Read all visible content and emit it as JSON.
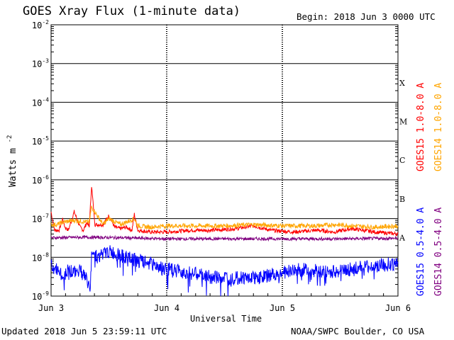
{
  "header": {
    "title": "GOES Xray Flux (1-minute data)",
    "begin": "Begin:  2018 Jun 3 0000 UTC"
  },
  "footer": {
    "updated": "Updated 2018 Jun  5 23:59:11 UTC",
    "credit": "NOAA/SWPC Boulder, CO USA"
  },
  "chart_data": {
    "type": "line",
    "title": "GOES Xray Flux (1-minute data)",
    "xlabel": "Universal Time",
    "ylabel": "Watts m",
    "ylabel_superscript": "-2",
    "y_scale": "log",
    "ylim": [
      1e-09,
      0.01
    ],
    "y_ticks": [
      {
        "base": "10",
        "exp": "-2"
      },
      {
        "base": "10",
        "exp": "-3"
      },
      {
        "base": "10",
        "exp": "-4"
      },
      {
        "base": "10",
        "exp": "-5"
      },
      {
        "base": "10",
        "exp": "-6"
      },
      {
        "base": "10",
        "exp": "-7"
      },
      {
        "base": "10",
        "exp": "-8"
      },
      {
        "base": "10",
        "exp": "-9"
      }
    ],
    "x_ticks": [
      "Jun 3",
      "Jun 4",
      "Jun 5",
      "Jun 6"
    ],
    "xlim_days": [
      0,
      3
    ],
    "flare_classes": [
      "X",
      "M",
      "C",
      "B",
      "A"
    ],
    "grid": true,
    "series": [
      {
        "name": "GOES15 1.0-8.0 A",
        "color": "#ff0000",
        "x": [
          0,
          0.03,
          0.07,
          0.1,
          0.12,
          0.15,
          0.2,
          0.25,
          0.28,
          0.31,
          0.33,
          0.35,
          0.38,
          0.45,
          0.5,
          0.55,
          0.6,
          0.65,
          0.7,
          0.72,
          0.75,
          0.85,
          1.0,
          1.2,
          1.4,
          1.6,
          1.75,
          1.9,
          2.1,
          2.3,
          2.45,
          2.6,
          2.8,
          3.0
        ],
        "y": [
          1.5e-07,
          5e-08,
          5e-08,
          1e-07,
          6e-08,
          5e-08,
          1.5e-07,
          6e-08,
          5e-08,
          8e-08,
          6e-08,
          7e-07,
          7e-08,
          7e-08,
          1.2e-07,
          6e-08,
          5.5e-08,
          6e-08,
          5e-08,
          1.3e-07,
          5e-08,
          4.5e-08,
          4.5e-08,
          5e-08,
          5e-08,
          5.5e-08,
          6.5e-08,
          5e-08,
          4.5e-08,
          5e-08,
          4.5e-08,
          5.5e-08,
          4.5e-08,
          4e-08
        ]
      },
      {
        "name": "GOES14 1.0-8.0 A",
        "color": "#ffa500",
        "x": [
          0,
          0.05,
          0.1,
          0.2,
          0.33,
          0.35,
          0.45,
          0.5,
          0.6,
          0.72,
          0.75,
          0.85,
          1.0,
          1.2,
          1.5,
          1.75,
          2.0,
          2.3,
          2.45,
          2.6,
          2.8,
          3.0
        ],
        "y": [
          7e-08,
          7e-08,
          8e-08,
          9e-08,
          8e-08,
          2e-07,
          7e-08,
          1e-07,
          7e-08,
          1e-07,
          6.5e-08,
          6e-08,
          6.5e-08,
          6.5e-08,
          6.5e-08,
          7e-08,
          6.5e-08,
          6.5e-08,
          7e-08,
          6.5e-08,
          6e-08,
          6.5e-08
        ]
      },
      {
        "name": "GOES14 0.5-4.0 A",
        "color": "#800080",
        "x": [
          0,
          0.3,
          0.6,
          1.0,
          1.5,
          2.0,
          2.5,
          3.0
        ],
        "y": [
          3.2e-08,
          3.3e-08,
          3.2e-08,
          3e-08,
          3e-08,
          3e-08,
          3e-08,
          3.1e-08
        ]
      },
      {
        "name": "GOES15 0.5-4.0 A",
        "color": "#0000ff",
        "x": [
          0,
          0.05,
          0.1,
          0.15,
          0.2,
          0.25,
          0.3,
          0.34,
          0.35,
          0.4,
          0.45,
          0.5,
          0.6,
          0.75,
          0.85,
          1.0,
          1.2,
          1.4,
          1.6,
          1.8,
          2.0,
          2.2,
          2.4,
          2.6,
          2.8,
          3.0
        ],
        "y": [
          6e-09,
          5e-09,
          3e-09,
          5e-09,
          4e-09,
          5e-09,
          3e-09,
          1.5e-09,
          1.8e-08,
          1e-08,
          1.2e-08,
          1.4e-08,
          1.1e-08,
          8e-09,
          7e-09,
          5e-09,
          4e-09,
          3e-09,
          3e-09,
          3e-09,
          4e-09,
          5e-09,
          4e-09,
          5e-09,
          6e-09,
          7e-09
        ]
      }
    ]
  }
}
